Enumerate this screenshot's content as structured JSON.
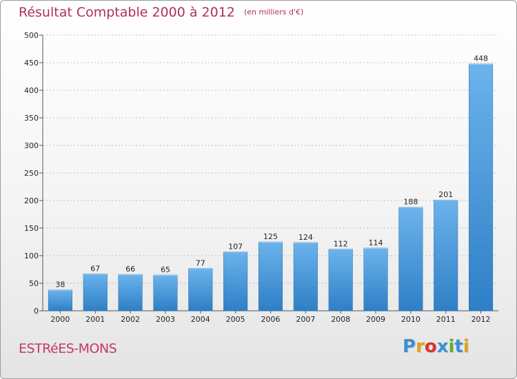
{
  "title": "Résultat Comptable 2000 à 2012",
  "subtitle": "(en milliers d'€)",
  "city": "ESTRéES-MONS",
  "logo": {
    "letters": [
      "P",
      "r",
      "o",
      "x",
      "i",
      "t",
      "i"
    ],
    "colors": [
      "#3a8fd6",
      "#e0a21a",
      "#d9332f",
      "#3a8fd6",
      "#5fb031",
      "#3a8fd6",
      "#e0a21a"
    ]
  },
  "colors": {
    "bar_light": "#6cb3ec",
    "bar_dark": "#2e7fc6",
    "title": "#b0305a",
    "grid": "#888888"
  },
  "chart_data": {
    "type": "bar",
    "title": "Résultat Comptable 2000 à 2012",
    "subtitle": "(en milliers d'€)",
    "categories": [
      "2000",
      "2001",
      "2002",
      "2003",
      "2004",
      "2005",
      "2006",
      "2007",
      "2008",
      "2009",
      "2010",
      "2011",
      "2012"
    ],
    "values": [
      38,
      67,
      66,
      65,
      77,
      107,
      125,
      124,
      112,
      114,
      188,
      201,
      448
    ],
    "ylim": [
      0,
      500
    ],
    "yticks": [
      0,
      50,
      100,
      150,
      200,
      250,
      300,
      350,
      400,
      450,
      500
    ],
    "grid": "horizontal dashed",
    "xlabel": "",
    "ylabel": ""
  }
}
